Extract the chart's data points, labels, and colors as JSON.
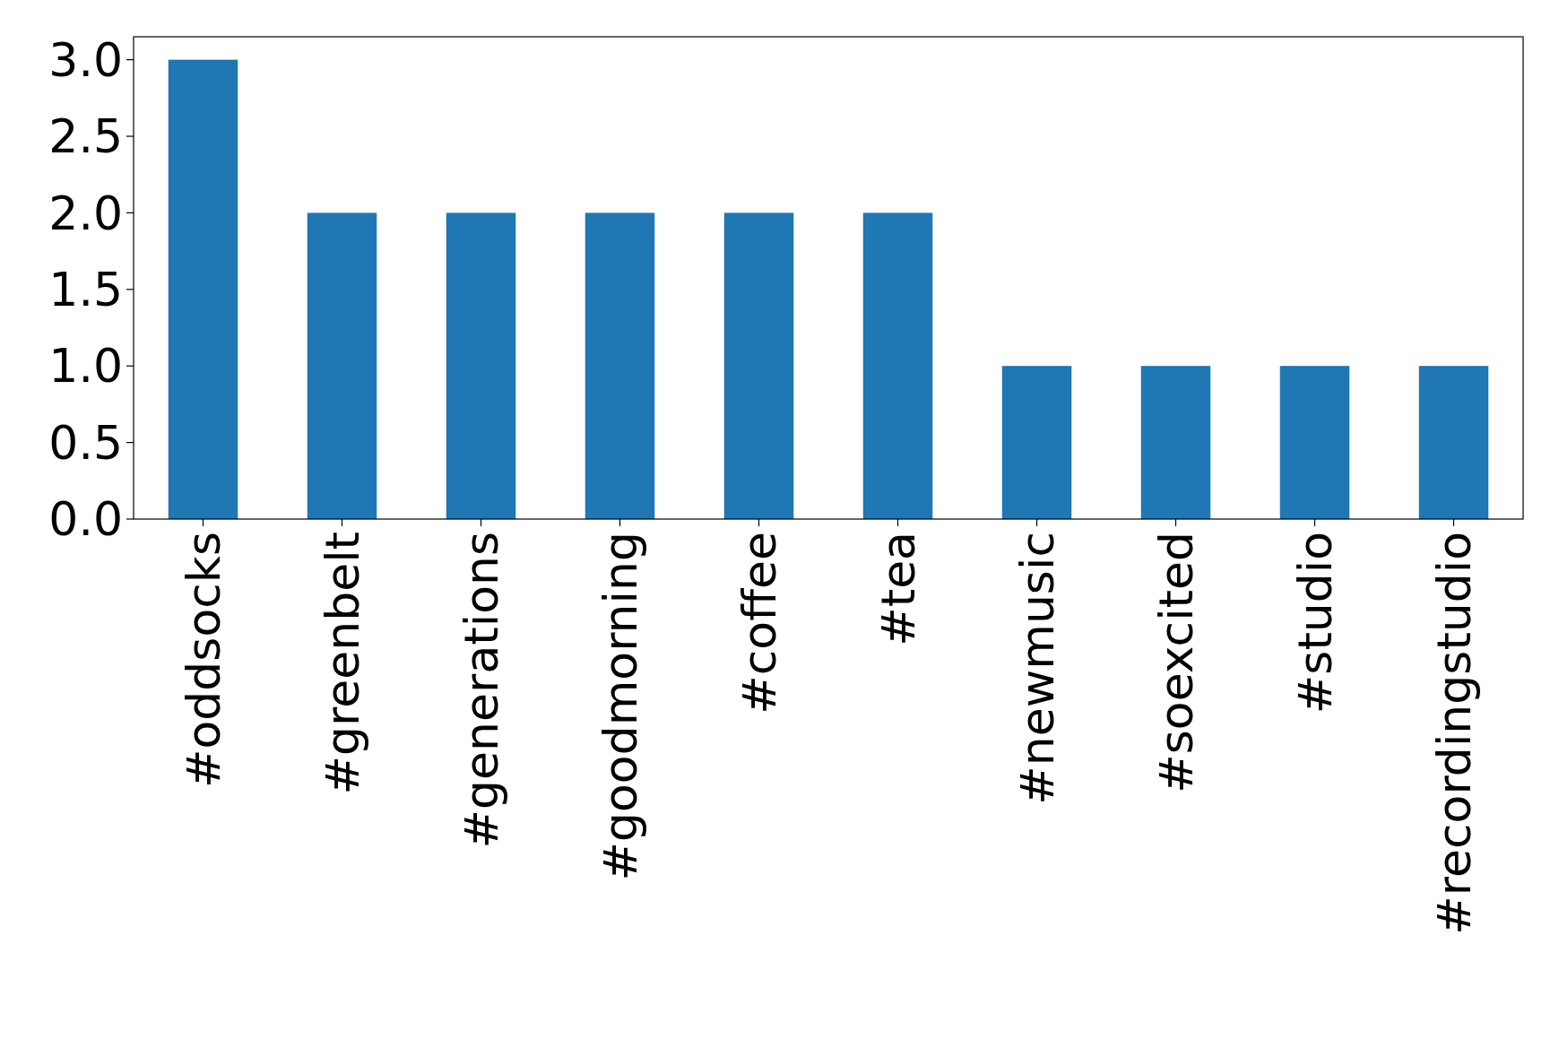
{
  "chart_data": {
    "type": "bar",
    "categories": [
      "#oddsocks",
      "#greenbelt",
      "#generations",
      "#goodmorning",
      "#coffee",
      "#tea",
      "#newmusic",
      "#soexcited",
      "#studio",
      "#recordingstudio"
    ],
    "values": [
      3,
      2,
      2,
      2,
      2,
      2,
      1,
      1,
      1,
      1
    ],
    "color": "#1f77b4",
    "ylim": [
      0,
      3.15
    ],
    "yticks": [
      {
        "value": 0,
        "label": "0.0"
      },
      {
        "value": 0.5,
        "label": "0.5"
      },
      {
        "value": 1,
        "label": "1.0"
      },
      {
        "value": 1.5,
        "label": "1.5"
      },
      {
        "value": 2,
        "label": "2.0"
      },
      {
        "value": 2.5,
        "label": "2.5"
      },
      {
        "value": 3,
        "label": "3.0"
      }
    ],
    "grid": false
  }
}
